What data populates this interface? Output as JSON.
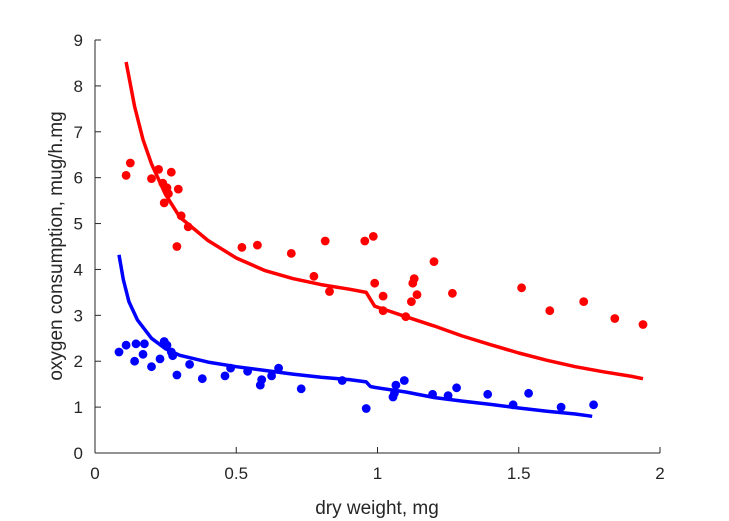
{
  "chart_data": {
    "type": "scatter",
    "title": "",
    "xlabel": "dry weight, mg",
    "ylabel": "oxygen consumption, mug/h.mg",
    "xlim": [
      0,
      2
    ],
    "ylim": [
      0,
      9
    ],
    "xticks": [
      0,
      0.5,
      1,
      1.5,
      2
    ],
    "xtick_labels": [
      "0",
      "0.5",
      "1",
      "1.5",
      "2"
    ],
    "yticks": [
      0,
      1,
      2,
      3,
      4,
      5,
      6,
      7,
      8,
      9
    ],
    "ytick_labels": [
      "0",
      "1",
      "2",
      "3",
      "4",
      "5",
      "6",
      "7",
      "8",
      "9"
    ],
    "grid": false,
    "legend": "none",
    "series": [
      {
        "color": "#ff0000",
        "kind": "points",
        "points": [
          [
            0.11,
            6.05
          ],
          [
            0.125,
            6.32
          ],
          [
            0.2,
            5.98
          ],
          [
            0.225,
            6.18
          ],
          [
            0.24,
            5.88
          ],
          [
            0.245,
            5.45
          ],
          [
            0.255,
            5.78
          ],
          [
            0.26,
            5.65
          ],
          [
            0.27,
            6.12
          ],
          [
            0.29,
            4.5
          ],
          [
            0.295,
            5.75
          ],
          [
            0.305,
            5.17
          ],
          [
            0.33,
            4.93
          ],
          [
            0.52,
            4.48
          ],
          [
            0.575,
            4.53
          ],
          [
            0.695,
            4.35
          ],
          [
            0.775,
            3.85
          ],
          [
            0.815,
            4.62
          ],
          [
            0.83,
            3.52
          ],
          [
            0.955,
            4.62
          ],
          [
            0.985,
            4.72
          ],
          [
            0.99,
            3.7
          ],
          [
            1.02,
            3.42
          ],
          [
            1.02,
            3.1
          ],
          [
            1.1,
            2.97
          ],
          [
            1.12,
            3.3
          ],
          [
            1.125,
            3.7
          ],
          [
            1.13,
            3.8
          ],
          [
            1.14,
            3.45
          ],
          [
            1.2,
            4.17
          ],
          [
            1.265,
            3.48
          ],
          [
            1.51,
            3.6
          ],
          [
            1.61,
            3.1
          ],
          [
            1.73,
            3.3
          ],
          [
            1.84,
            2.93
          ],
          [
            1.94,
            2.8
          ]
        ]
      },
      {
        "color": "#0000ff",
        "kind": "points",
        "points": [
          [
            0.085,
            2.2
          ],
          [
            0.11,
            2.35
          ],
          [
            0.14,
            2.0
          ],
          [
            0.145,
            2.38
          ],
          [
            0.17,
            2.15
          ],
          [
            0.175,
            2.38
          ],
          [
            0.2,
            1.88
          ],
          [
            0.23,
            2.05
          ],
          [
            0.245,
            2.43
          ],
          [
            0.255,
            2.35
          ],
          [
            0.27,
            2.2
          ],
          [
            0.275,
            2.12
          ],
          [
            0.29,
            1.7
          ],
          [
            0.335,
            1.93
          ],
          [
            0.38,
            1.62
          ],
          [
            0.46,
            1.68
          ],
          [
            0.48,
            1.85
          ],
          [
            0.54,
            1.78
          ],
          [
            0.585,
            1.48
          ],
          [
            0.59,
            1.6
          ],
          [
            0.625,
            1.68
          ],
          [
            0.65,
            1.85
          ],
          [
            0.73,
            1.4
          ],
          [
            0.875,
            1.58
          ],
          [
            0.96,
            0.97
          ],
          [
            1.055,
            1.22
          ],
          [
            1.06,
            1.3
          ],
          [
            1.065,
            1.48
          ],
          [
            1.095,
            1.58
          ],
          [
            1.195,
            1.28
          ],
          [
            1.25,
            1.25
          ],
          [
            1.28,
            1.42
          ],
          [
            1.39,
            1.28
          ],
          [
            1.48,
            1.05
          ],
          [
            1.535,
            1.3
          ],
          [
            1.65,
            1.0
          ],
          [
            1.765,
            1.05
          ]
        ]
      },
      {
        "color": "#ff0000",
        "kind": "line",
        "points": [
          [
            0.11,
            8.52
          ],
          [
            0.14,
            7.55
          ],
          [
            0.17,
            6.83
          ],
          [
            0.2,
            6.3
          ],
          [
            0.25,
            5.63
          ],
          [
            0.3,
            5.14
          ],
          [
            0.4,
            4.63
          ],
          [
            0.5,
            4.25
          ],
          [
            0.6,
            3.98
          ],
          [
            0.7,
            3.8
          ],
          [
            0.8,
            3.67
          ],
          [
            0.9,
            3.57
          ],
          [
            0.96,
            3.5
          ],
          [
            0.975,
            3.35
          ],
          [
            0.99,
            3.2
          ],
          [
            1.1,
            2.97
          ],
          [
            1.2,
            2.77
          ],
          [
            1.3,
            2.55
          ],
          [
            1.4,
            2.36
          ],
          [
            1.5,
            2.18
          ],
          [
            1.6,
            2.02
          ],
          [
            1.7,
            1.88
          ],
          [
            1.8,
            1.77
          ],
          [
            1.9,
            1.67
          ],
          [
            1.94,
            1.62
          ]
        ]
      },
      {
        "color": "#0000ff",
        "kind": "line",
        "points": [
          [
            0.085,
            4.32
          ],
          [
            0.1,
            3.78
          ],
          [
            0.12,
            3.3
          ],
          [
            0.15,
            2.9
          ],
          [
            0.2,
            2.5
          ],
          [
            0.25,
            2.27
          ],
          [
            0.3,
            2.13
          ],
          [
            0.4,
            1.98
          ],
          [
            0.5,
            1.88
          ],
          [
            0.6,
            1.8
          ],
          [
            0.7,
            1.72
          ],
          [
            0.8,
            1.65
          ],
          [
            0.9,
            1.6
          ],
          [
            0.96,
            1.55
          ],
          [
            0.975,
            1.45
          ],
          [
            0.99,
            1.43
          ],
          [
            1.1,
            1.33
          ],
          [
            1.2,
            1.21
          ],
          [
            1.3,
            1.13
          ],
          [
            1.4,
            1.06
          ],
          [
            1.5,
            0.98
          ],
          [
            1.6,
            0.91
          ],
          [
            1.7,
            0.85
          ],
          [
            1.76,
            0.8
          ]
        ]
      }
    ]
  }
}
